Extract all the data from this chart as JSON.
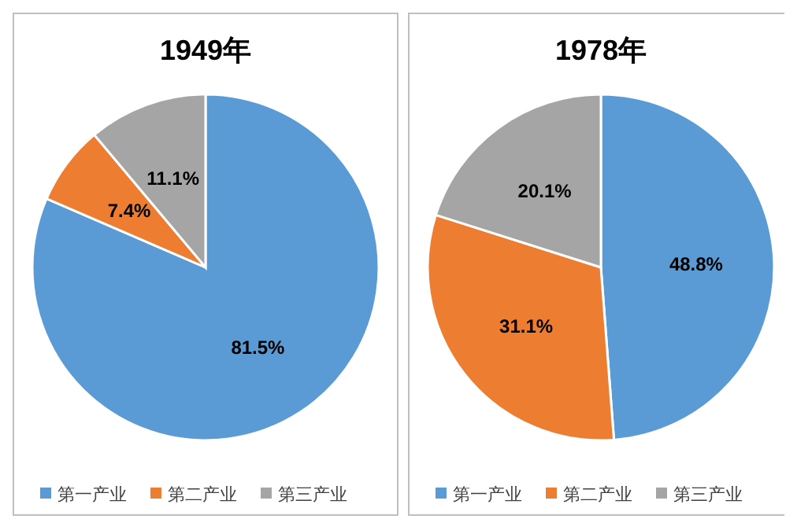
{
  "chart_data": [
    {
      "type": "pie",
      "title": "1949年",
      "categories": [
        "第一产业",
        "第二产业",
        "第三产业"
      ],
      "values": [
        81.5,
        7.4,
        11.1
      ],
      "colors": [
        "#5b9bd5",
        "#ed7d31",
        "#a5a5a5"
      ],
      "value_labels": [
        "81.5%",
        "7.4%",
        "11.1%"
      ],
      "legend": "bottom"
    },
    {
      "type": "pie",
      "title": "1978年",
      "categories": [
        "第一产业",
        "第二产业",
        "第三产业"
      ],
      "values": [
        48.8,
        31.1,
        20.1
      ],
      "colors": [
        "#5b9bd5",
        "#ed7d31",
        "#a5a5a5"
      ],
      "value_labels": [
        "48.8%",
        "31.1%",
        "20.1%"
      ],
      "legend": "bottom"
    }
  ]
}
